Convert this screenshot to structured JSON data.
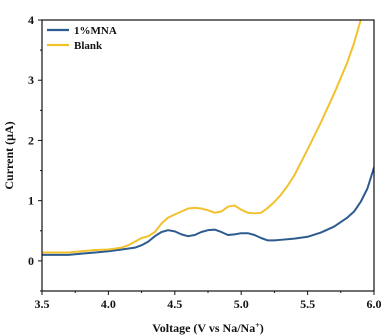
{
  "chart_data": {
    "type": "line",
    "title": "",
    "xlabel": "Voltage (V vs Na/Na",
    "xlabel_sup": "+",
    "xlabel_suffix": ")",
    "ylabel": "Current (μA)",
    "xlim": [
      3.5,
      6.0
    ],
    "ylim": [
      -0.5,
      4.0
    ],
    "xticks": [
      3.5,
      4.0,
      4.5,
      5.0,
      5.5,
      6.0
    ],
    "xtick_labels": [
      "3.5",
      "4.0",
      "4.5",
      "5.0",
      "5.5",
      "6.0"
    ],
    "yticks": [
      0,
      1,
      2,
      3,
      4
    ],
    "ytick_labels": [
      "0",
      "1",
      "2",
      "3",
      "4"
    ],
    "grid": false,
    "legend_position": "top-left",
    "series": [
      {
        "name": "1%MNA",
        "color": "#2e5b8f",
        "x": [
          3.5,
          3.6,
          3.7,
          3.8,
          3.9,
          4.0,
          4.1,
          4.2,
          4.25,
          4.3,
          4.35,
          4.4,
          4.45,
          4.5,
          4.55,
          4.6,
          4.65,
          4.7,
          4.75,
          4.8,
          4.85,
          4.9,
          4.95,
          5.0,
          5.05,
          5.1,
          5.15,
          5.2,
          5.25,
          5.3,
          5.4,
          5.5,
          5.6,
          5.7,
          5.8,
          5.85,
          5.9,
          5.95,
          6.0
        ],
        "y": [
          0.1,
          0.1,
          0.1,
          0.12,
          0.14,
          0.16,
          0.19,
          0.22,
          0.26,
          0.32,
          0.41,
          0.48,
          0.51,
          0.49,
          0.44,
          0.41,
          0.43,
          0.48,
          0.51,
          0.52,
          0.48,
          0.43,
          0.44,
          0.46,
          0.46,
          0.43,
          0.38,
          0.34,
          0.34,
          0.35,
          0.37,
          0.4,
          0.47,
          0.57,
          0.72,
          0.82,
          0.98,
          1.2,
          1.55
        ]
      },
      {
        "name": "Blank",
        "color": "#f2c12e",
        "x": [
          3.5,
          3.6,
          3.7,
          3.8,
          3.9,
          4.0,
          4.1,
          4.15,
          4.2,
          4.25,
          4.3,
          4.35,
          4.4,
          4.45,
          4.5,
          4.55,
          4.6,
          4.65,
          4.7,
          4.75,
          4.8,
          4.85,
          4.9,
          4.95,
          5.0,
          5.05,
          5.1,
          5.15,
          5.2,
          5.25,
          5.3,
          5.35,
          5.4,
          5.5,
          5.6,
          5.7,
          5.8,
          5.85,
          5.9
        ],
        "y": [
          0.14,
          0.14,
          0.14,
          0.16,
          0.18,
          0.19,
          0.22,
          0.26,
          0.32,
          0.38,
          0.41,
          0.48,
          0.62,
          0.72,
          0.77,
          0.82,
          0.87,
          0.88,
          0.87,
          0.84,
          0.8,
          0.82,
          0.9,
          0.92,
          0.85,
          0.8,
          0.79,
          0.8,
          0.88,
          0.98,
          1.1,
          1.25,
          1.42,
          1.85,
          2.3,
          2.78,
          3.3,
          3.62,
          4.0
        ]
      }
    ]
  }
}
